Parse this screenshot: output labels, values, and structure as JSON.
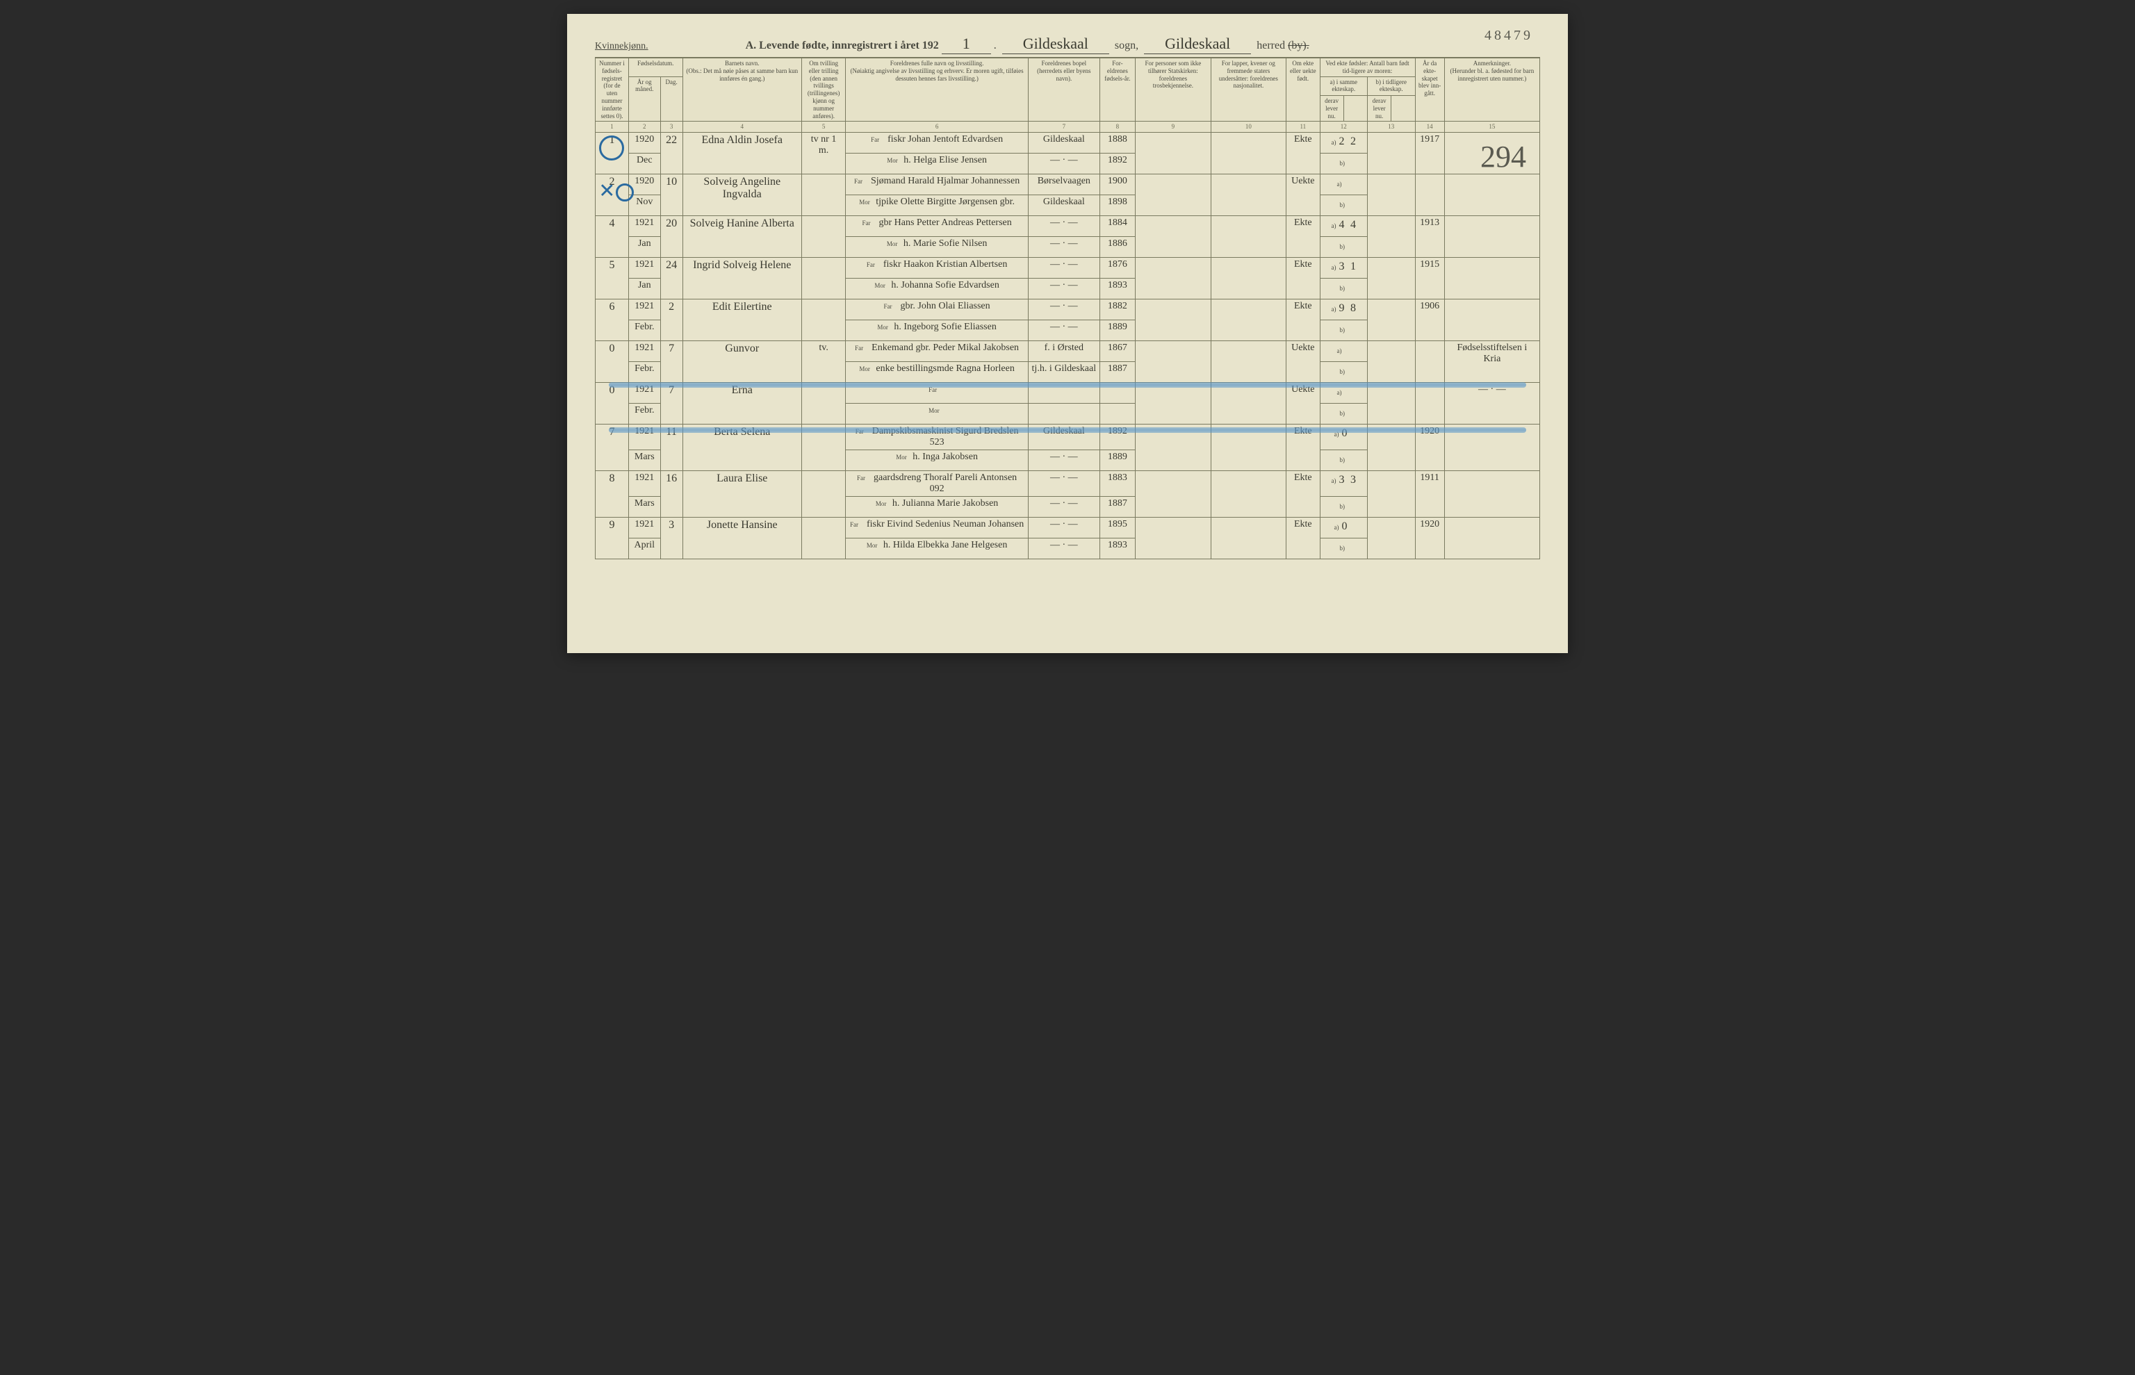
{
  "archive_number": "48479",
  "gender_label": "Kvinnekjønn.",
  "title": {
    "prefix": "A.",
    "main": "Levende fødte, innregistrert i året 192",
    "year_digit": "1",
    "sogn_value": "Gildeskaal",
    "sogn_label": "sogn,",
    "herred_value": "Gildeskaal",
    "herred_label": "herred",
    "struck": "(by)."
  },
  "side_annotation": "294",
  "columns": {
    "c1": "Nummer i fødsels-registret (for de uten nummer innførte settes 0).",
    "c2": "Fødselsdatum.",
    "c2a": "År og måned.",
    "c2b": "Dag.",
    "c4": "Barnets navn.",
    "c4_note": "(Obs.: Det må nøie påses at samme barn kun innføres én gang.)",
    "c5": "Om tvilling eller trilling (den annen tvillings (trillingenes) kjønn og nummer anføres).",
    "c6": "Foreldrenes fulle navn og livsstilling.",
    "c6_note": "(Nøiaktig angivelse av livsstilling og erhverv. Er moren ugift, tilføies dessuten hennes fars livsstilling.)",
    "c7": "Foreldrenes bopel (herredets eller byens navn).",
    "c8": "For-eldrenes fødsels-år.",
    "c9": "For personer som ikke tilhører Statskirken: foreldrenes trosbekjennelse.",
    "c10": "For lapper, kvener og fremmede staters undersåtter: foreldrenes nasjonalitet.",
    "c11": "Om ekte eller uekte født.",
    "c12_13_top": "Ved ekte fødsler: Antall barn født tid-ligere av moren:",
    "c12": "a) i samme ekteskap.",
    "c12b": "derav lever nu.",
    "c13": "b) i tidligere ekteskap.",
    "c13b": "derav lever nu.",
    "c14": "År da ekte-skapet blev inn-gått.",
    "c15": "Anmerkninger.",
    "c15_note": "(Herunder bl. a. fødested for barn innregistrert uten nummer.)"
  },
  "colnums": [
    "1",
    "2",
    "3",
    "4",
    "5",
    "6",
    "7",
    "8",
    "9",
    "10",
    "11",
    "12",
    "13",
    "14",
    "15"
  ],
  "far_label": "Far",
  "mor_label": "Mor",
  "ab_a": "a)",
  "ab_b": "b)",
  "entries": [
    {
      "num": "1",
      "year_mo_top": "1920",
      "year_mo_bot": "Dec",
      "day": "22",
      "child": "Edna Aldin Josefa",
      "twin": "tv nr 1 m.",
      "far": "fiskr Johan Jentoft Edvardsen",
      "mor": "h. Helga Elise Jensen",
      "bopel_far": "Gildeskaal",
      "bopel_mor": "— · —",
      "faar_far": "1888",
      "faar_mor": "1892",
      "ekte": "Ekte",
      "a": "2",
      "a2": "2",
      "b": "",
      "marr_year": "1917",
      "note": ""
    },
    {
      "num": "2",
      "year_mo_top": "1920",
      "year_mo_bot": "Nov",
      "day": "10",
      "child": "Solveig Angeline Ingvalda",
      "twin": "",
      "far": "Sjømand Harald Hjalmar Johannessen",
      "mor": "tjpike Olette Birgitte Jørgensen gbr.",
      "bopel_far": "Børselvaagen",
      "bopel_mor": "Gildeskaal",
      "faar_far": "1900",
      "faar_mor": "1898",
      "ekte": "Uekte",
      "a": "",
      "a2": "",
      "b": "",
      "marr_year": "",
      "note": ""
    },
    {
      "num": "4",
      "year_mo_top": "1921",
      "year_mo_bot": "Jan",
      "day": "20",
      "child": "Solveig Hanine Alberta",
      "twin": "",
      "far": "gbr Hans Petter Andreas Pettersen",
      "mor": "h. Marie Sofie Nilsen",
      "bopel_far": "— · —",
      "bopel_mor": "— · —",
      "faar_far": "1884",
      "faar_mor": "1886",
      "ekte": "Ekte",
      "a": "4",
      "a2": "4",
      "b": "",
      "marr_year": "1913",
      "note": ""
    },
    {
      "num": "5",
      "year_mo_top": "1921",
      "year_mo_bot": "Jan",
      "day": "24",
      "child": "Ingrid Solveig Helene",
      "twin": "",
      "far": "fiskr Haakon Kristian Albertsen",
      "mor": "h. Johanna Sofie Edvardsen",
      "bopel_far": "— · —",
      "bopel_mor": "— · —",
      "faar_far": "1876",
      "faar_mor": "1893",
      "ekte": "Ekte",
      "a": "3",
      "a2": "1",
      "b": "",
      "marr_year": "1915",
      "note": ""
    },
    {
      "num": "6",
      "year_mo_top": "1921",
      "year_mo_bot": "Febr.",
      "day": "2",
      "child": "Edit Eilertine",
      "twin": "",
      "far": "gbr. John Olai Eliassen",
      "mor": "h. Ingeborg Sofie Eliassen",
      "bopel_far": "— · —",
      "bopel_mor": "— · —",
      "faar_far": "1882",
      "faar_mor": "1889",
      "ekte": "Ekte",
      "a": "9",
      "a2": "8",
      "b": "",
      "marr_year": "1906",
      "note": ""
    },
    {
      "num": "0",
      "year_mo_top": "1921",
      "year_mo_bot": "Febr.",
      "day": "7",
      "child": "Gunvor",
      "twin": "tv.",
      "far": "Enkemand gbr. Peder Mikal Jakobsen",
      "mor": "enke bestillingsmde Ragna Horleen",
      "bopel_far": "f. i Ørsted",
      "bopel_mor": "tj.h. i Gildeskaal",
      "faar_far": "1867",
      "faar_mor": "1887",
      "ekte": "Uekte",
      "a": "",
      "a2": "",
      "b": "",
      "marr_year": "",
      "note": "Fødselsstiftelsen i Kria"
    },
    {
      "num": "0",
      "year_mo_top": "1921",
      "year_mo_bot": "Febr.",
      "day": "7",
      "child": "Erna",
      "twin": "",
      "far": "",
      "mor": "",
      "bopel_far": "",
      "bopel_mor": "",
      "faar_far": "",
      "faar_mor": "",
      "ekte": "Uekte",
      "a": "",
      "a2": "",
      "b": "",
      "marr_year": "",
      "note": "— · —"
    },
    {
      "num": "7",
      "year_mo_top": "1921",
      "year_mo_bot": "Mars",
      "day": "11",
      "child": "Berta Selena",
      "twin": "",
      "far": "Dampskibsmaskinist Sigurd Bredslen 523",
      "mor": "h. Inga Jakobsen",
      "bopel_far": "Gildeskaal",
      "bopel_mor": "— · —",
      "faar_far": "1892",
      "faar_mor": "1889",
      "ekte": "Ekte",
      "a": "0",
      "a2": "",
      "b": "",
      "marr_year": "1920",
      "note": ""
    },
    {
      "num": "8",
      "year_mo_top": "1921",
      "year_mo_bot": "Mars",
      "day": "16",
      "child": "Laura Elise",
      "twin": "",
      "far": "gaardsdreng Thoralf Pareli Antonsen 092",
      "mor": "h. Julianna Marie Jakobsen",
      "bopel_far": "— · —",
      "bopel_mor": "— · —",
      "faar_far": "1883",
      "faar_mor": "1887",
      "ekte": "Ekte",
      "a": "3",
      "a2": "3",
      "b": "",
      "marr_year": "1911",
      "note": ""
    },
    {
      "num": "9",
      "year_mo_top": "1921",
      "year_mo_bot": "April",
      "day": "3",
      "child": "Jonette Hansine",
      "twin": "",
      "far": "fiskr Eivind Sedenius Neuman Johansen",
      "mor": "h. Hilda Elbekka Jane Helgesen",
      "bopel_far": "— · —",
      "bopel_mor": "— · —",
      "faar_far": "1895",
      "faar_mor": "1893",
      "ekte": "Ekte",
      "a": "0",
      "a2": "",
      "b": "",
      "marr_year": "1920",
      "note": ""
    }
  ],
  "styling": {
    "page_bg": "#e8e4cc",
    "ink": "#3a3a30",
    "rule": "#7a7a60",
    "blue_pencil": "#5a96c8",
    "blue_circle": "#2a6aa0",
    "hand_font": "Brush Script MT",
    "print_font": "Georgia",
    "header_fontsize": 16,
    "cell_fontsize": 11,
    "hand_fontsize": 16
  }
}
